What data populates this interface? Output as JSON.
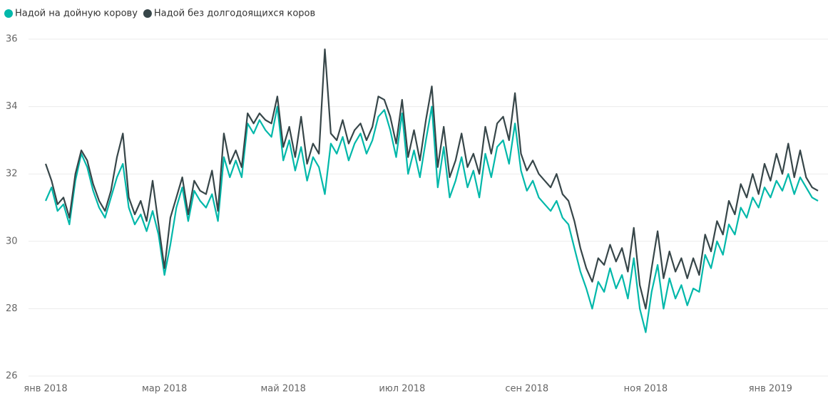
{
  "chart_data": {
    "type": "line",
    "categories": [
      "янв 2018",
      null,
      null,
      null,
      null,
      null,
      null,
      null,
      null,
      null,
      null,
      null,
      null,
      null,
      null,
      null,
      null,
      null,
      null,
      null,
      "мар 2018",
      null,
      null,
      null,
      null,
      null,
      null,
      null,
      null,
      null,
      null,
      null,
      null,
      null,
      null,
      null,
      null,
      null,
      null,
      null,
      "май 2018",
      null,
      null,
      null,
      null,
      null,
      null,
      null,
      null,
      null,
      null,
      null,
      null,
      null,
      null,
      null,
      null,
      null,
      null,
      null,
      "июл 2018",
      null,
      null,
      null,
      null,
      null,
      null,
      null,
      null,
      null,
      null,
      null,
      null,
      null,
      null,
      null,
      null,
      null,
      null,
      null,
      null,
      "сен 2018",
      null,
      null,
      null,
      null,
      null,
      null,
      null,
      null,
      null,
      null,
      null,
      null,
      null,
      null,
      null,
      null,
      null,
      null,
      null,
      "ноя 2018",
      null,
      null,
      null,
      null,
      null,
      null,
      null,
      null,
      null,
      null,
      null,
      null,
      null,
      null,
      null,
      null,
      null,
      null,
      null,
      null,
      "янв 2019",
      null,
      null,
      null,
      null,
      null,
      null,
      null,
      null
    ],
    "series": [
      {
        "name": "Надой на дойную корову",
        "color": "#01B8AA",
        "values": [
          31.2,
          31.6,
          30.9,
          31.1,
          30.5,
          31.8,
          32.6,
          32.2,
          31.5,
          31.0,
          30.7,
          31.3,
          31.9,
          32.3,
          31.0,
          30.5,
          30.8,
          30.3,
          30.9,
          30.2,
          29.0,
          29.9,
          31.0,
          31.6,
          30.6,
          31.5,
          31.2,
          31.0,
          31.4,
          30.6,
          32.5,
          31.9,
          32.4,
          31.9,
          33.5,
          33.2,
          33.6,
          33.3,
          33.1,
          34.0,
          32.4,
          33.0,
          32.1,
          32.8,
          31.8,
          32.5,
          32.2,
          31.4,
          32.9,
          32.6,
          33.1,
          32.4,
          32.9,
          33.2,
          32.6,
          33.0,
          33.7,
          33.9,
          33.3,
          32.5,
          33.8,
          32.0,
          32.7,
          31.9,
          33.0,
          34.0,
          31.6,
          32.8,
          31.3,
          31.8,
          32.5,
          31.6,
          32.1,
          31.3,
          32.6,
          31.9,
          32.8,
          33.0,
          32.3,
          33.5,
          32.1,
          31.5,
          31.8,
          31.3,
          31.1,
          30.9,
          31.2,
          30.7,
          30.5,
          29.8,
          29.1,
          28.6,
          28.0,
          28.8,
          28.5,
          29.2,
          28.6,
          29.0,
          28.3,
          29.5,
          28.0,
          27.3,
          28.5,
          29.3,
          28.0,
          28.9,
          28.3,
          28.7,
          28.1,
          28.6,
          28.5,
          29.6,
          29.2,
          30.0,
          29.6,
          30.5,
          30.2,
          31.0,
          30.7,
          31.3,
          31.0,
          31.6,
          31.3,
          31.8,
          31.5,
          32.0,
          31.4,
          31.9,
          31.6,
          31.3,
          31.2
        ]
      },
      {
        "name": "Надой без долгодоящихся коров",
        "color": "#374649",
        "values": [
          32.3,
          31.8,
          31.1,
          31.3,
          30.7,
          32.0,
          32.7,
          32.4,
          31.7,
          31.2,
          30.9,
          31.5,
          32.5,
          33.2,
          31.3,
          30.8,
          31.2,
          30.6,
          31.8,
          30.5,
          29.2,
          30.7,
          31.3,
          31.9,
          30.8,
          31.8,
          31.5,
          31.4,
          32.1,
          30.9,
          33.2,
          32.3,
          32.7,
          32.2,
          33.8,
          33.5,
          33.8,
          33.6,
          33.5,
          34.3,
          32.8,
          33.4,
          32.5,
          33.7,
          32.3,
          32.9,
          32.6,
          35.7,
          33.2,
          33.0,
          33.6,
          32.9,
          33.3,
          33.5,
          33.0,
          33.4,
          34.3,
          34.2,
          33.7,
          32.9,
          34.2,
          32.5,
          33.3,
          32.4,
          33.6,
          34.6,
          32.2,
          33.4,
          31.9,
          32.4,
          33.2,
          32.2,
          32.6,
          32.0,
          33.4,
          32.6,
          33.5,
          33.7,
          33.0,
          34.4,
          32.6,
          32.1,
          32.4,
          32.0,
          31.8,
          31.6,
          32.0,
          31.4,
          31.2,
          30.6,
          29.8,
          29.2,
          28.8,
          29.5,
          29.3,
          29.9,
          29.4,
          29.8,
          29.1,
          30.4,
          28.7,
          28.0,
          29.2,
          30.3,
          28.9,
          29.7,
          29.1,
          29.5,
          28.9,
          29.5,
          29.0,
          30.2,
          29.7,
          30.6,
          30.2,
          31.2,
          30.8,
          31.7,
          31.3,
          32.0,
          31.4,
          32.3,
          31.8,
          32.6,
          32.0,
          32.9,
          31.9,
          32.7,
          31.9,
          31.6,
          31.5
        ]
      }
    ],
    "ylim": [
      26,
      36
    ],
    "yticks": [
      26,
      28,
      30,
      32,
      34,
      36
    ],
    "grid": true,
    "legend": "top"
  }
}
